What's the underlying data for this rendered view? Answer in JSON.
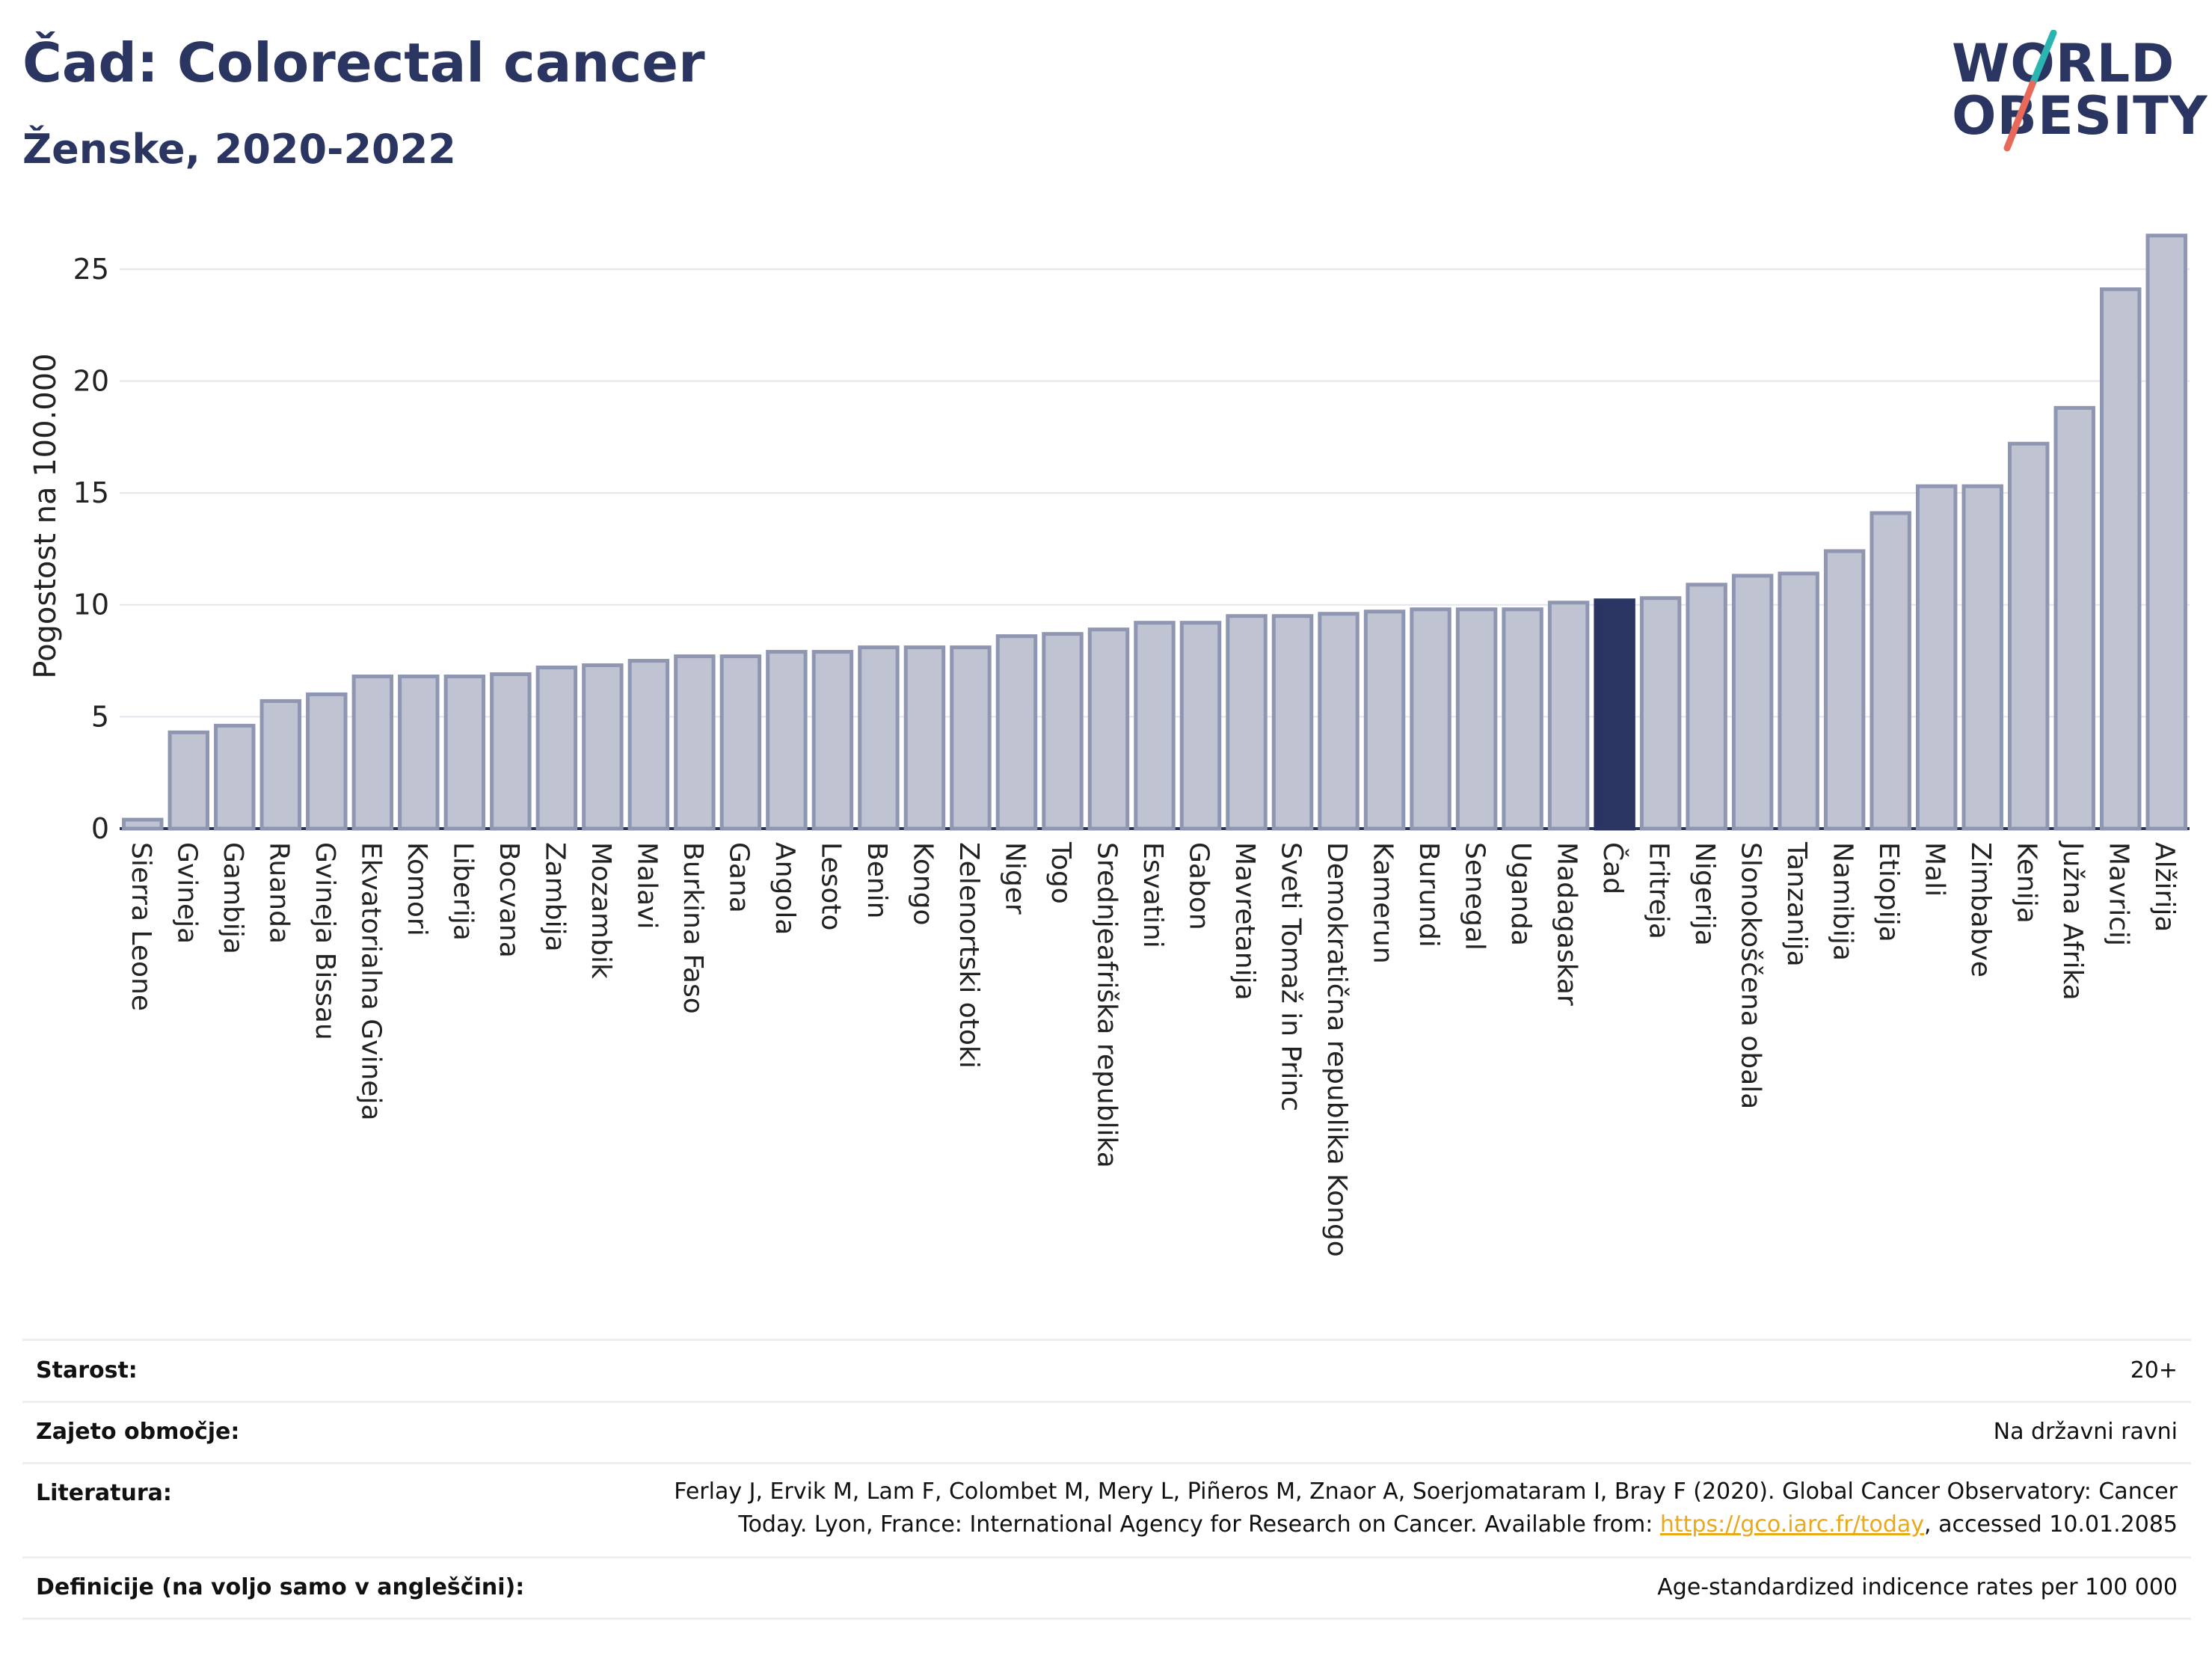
{
  "header": {
    "title": "Čad: Colorectal cancer",
    "subtitle": "Ženske, 2020-2022"
  },
  "logo": {
    "line1": "WORLD",
    "line2": "OBESITY",
    "colors": {
      "text": "#2b3562",
      "slash_top": "#2bb5b0",
      "slash_bottom": "#e8685a"
    }
  },
  "chart_data": {
    "type": "bar",
    "ylabel": "Pogostost na 100.000",
    "ylim": [
      0,
      27
    ],
    "yticks": [
      0,
      5,
      10,
      15,
      20,
      25
    ],
    "grid": true,
    "highlight": "Čad",
    "colors": {
      "bar": "#bfc3d2",
      "bar_border": "#8f96b2",
      "highlight": "#2b3562"
    },
    "categories": [
      "Sierra Leone",
      "Gvineja",
      "Gambija",
      "Ruanda",
      "Gvineja Bissau",
      "Ekvatorialna Gvineja",
      "Komori",
      "Liberija",
      "Bocvana",
      "Zambija",
      "Mozambik",
      "Malavi",
      "Burkina Faso",
      "Gana",
      "Angola",
      "Lesoto",
      "Benin",
      "Kongo",
      "Zelenortski otoki",
      "Niger",
      "Togo",
      "Srednjeafriška republika",
      "Esvatini",
      "Gabon",
      "Mavretanija",
      "Sveti Tomaž in Princ",
      "Demokratična republika Kongo",
      "Kamerun",
      "Burundi",
      "Senegal",
      "Uganda",
      "Madagaskar",
      "Čad",
      "Eritreja",
      "Nigerija",
      "Slonokoščena obala",
      "Tanzanija",
      "Namibija",
      "Etiopija",
      "Mali",
      "Zimbabve",
      "Kenija",
      "Južna Afrika",
      "Mavricij",
      "Alžirija"
    ],
    "values": [
      0.4,
      4.3,
      4.6,
      5.7,
      6.0,
      6.8,
      6.8,
      6.8,
      6.9,
      7.2,
      7.3,
      7.5,
      7.7,
      7.7,
      7.9,
      7.9,
      8.1,
      8.1,
      8.1,
      8.6,
      8.7,
      8.9,
      9.2,
      9.2,
      9.5,
      9.5,
      9.6,
      9.7,
      9.8,
      9.8,
      9.8,
      10.1,
      10.2,
      10.3,
      10.9,
      11.3,
      11.4,
      12.4,
      14.1,
      15.3,
      15.3,
      17.2,
      18.8,
      24.1,
      26.5
    ]
  },
  "info": {
    "age_label": "Starost:",
    "age_value": "20+",
    "coverage_label": "Zajeto območje:",
    "coverage_value": "Na državni ravni",
    "references_label": "Literatura:",
    "references_text_1": "Ferlay J, Ervik M, Lam F, Colombet M, Mery L, Piñeros M, Znaor A, Soerjomataram I, Bray F (2020). Global Cancer Observatory: Cancer",
    "references_text_2": "Today. Lyon, France: International Agency for Research on Cancer. Available from: ",
    "references_link": "https://gco.iarc.fr/today",
    "references_text_3": ", accessed 10.01.2085",
    "definitions_label": "Definicije (na voljo samo v angleščini):",
    "definitions_value": "Age-standardized indicence rates per 100 000"
  }
}
